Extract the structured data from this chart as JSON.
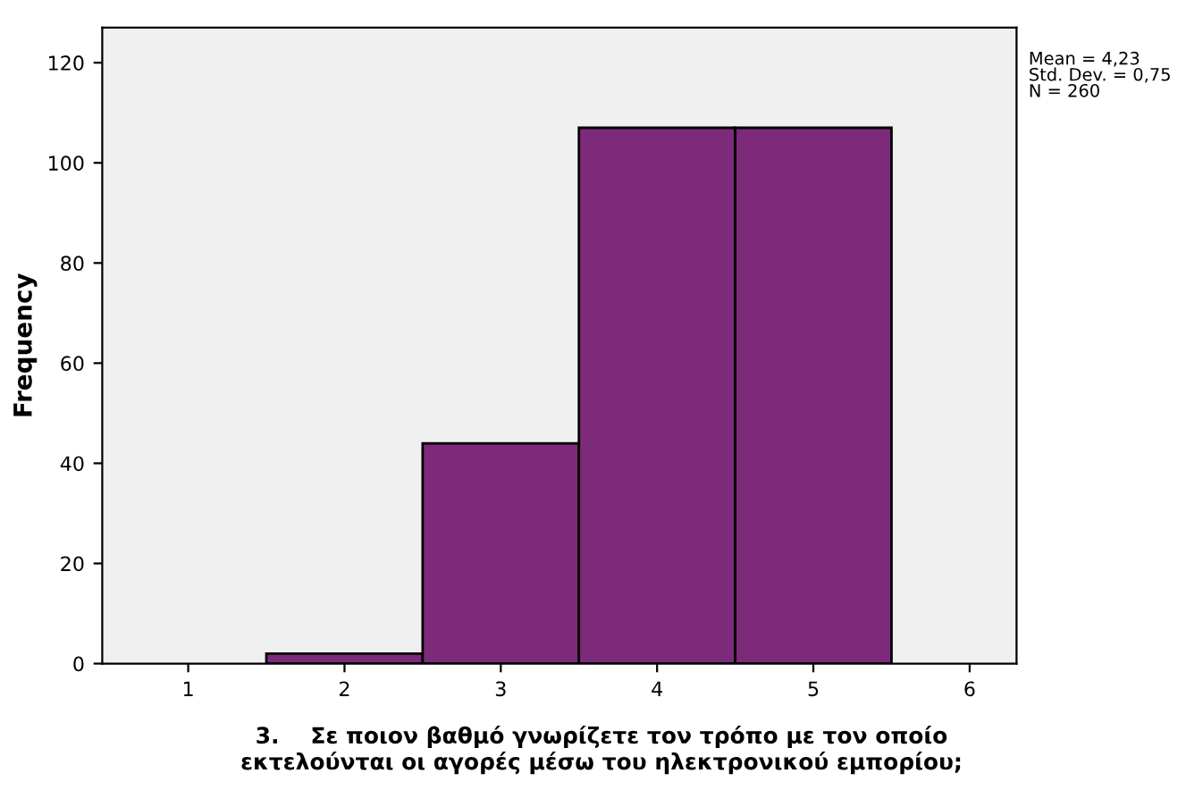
{
  "chart_data": {
    "type": "histogram",
    "xlabel": "3.    Σε ποιον βαθμό γνωρίζετε τον τρόπο με τον οποίο εκτελούνται οι αγορές μέσω του ηλεκτρονικού εμπορίου;",
    "ylabel": "Frequency",
    "bins": [
      1.5,
      2.5,
      3.5,
      4.5,
      5.5
    ],
    "values": [
      2,
      44,
      107,
      107
    ],
    "color": "#7e2a7a",
    "xlim": [
      0.45,
      6.3
    ],
    "xticks": [
      1,
      2,
      3,
      4,
      5,
      6
    ],
    "ylim": [
      0,
      127
    ],
    "yticks": [
      0,
      20,
      40,
      60,
      80,
      100,
      120
    ],
    "grid": false,
    "annotations": [
      "Mean = 4,23",
      "Std. Dev. = 0,75",
      "N = 260"
    ]
  }
}
